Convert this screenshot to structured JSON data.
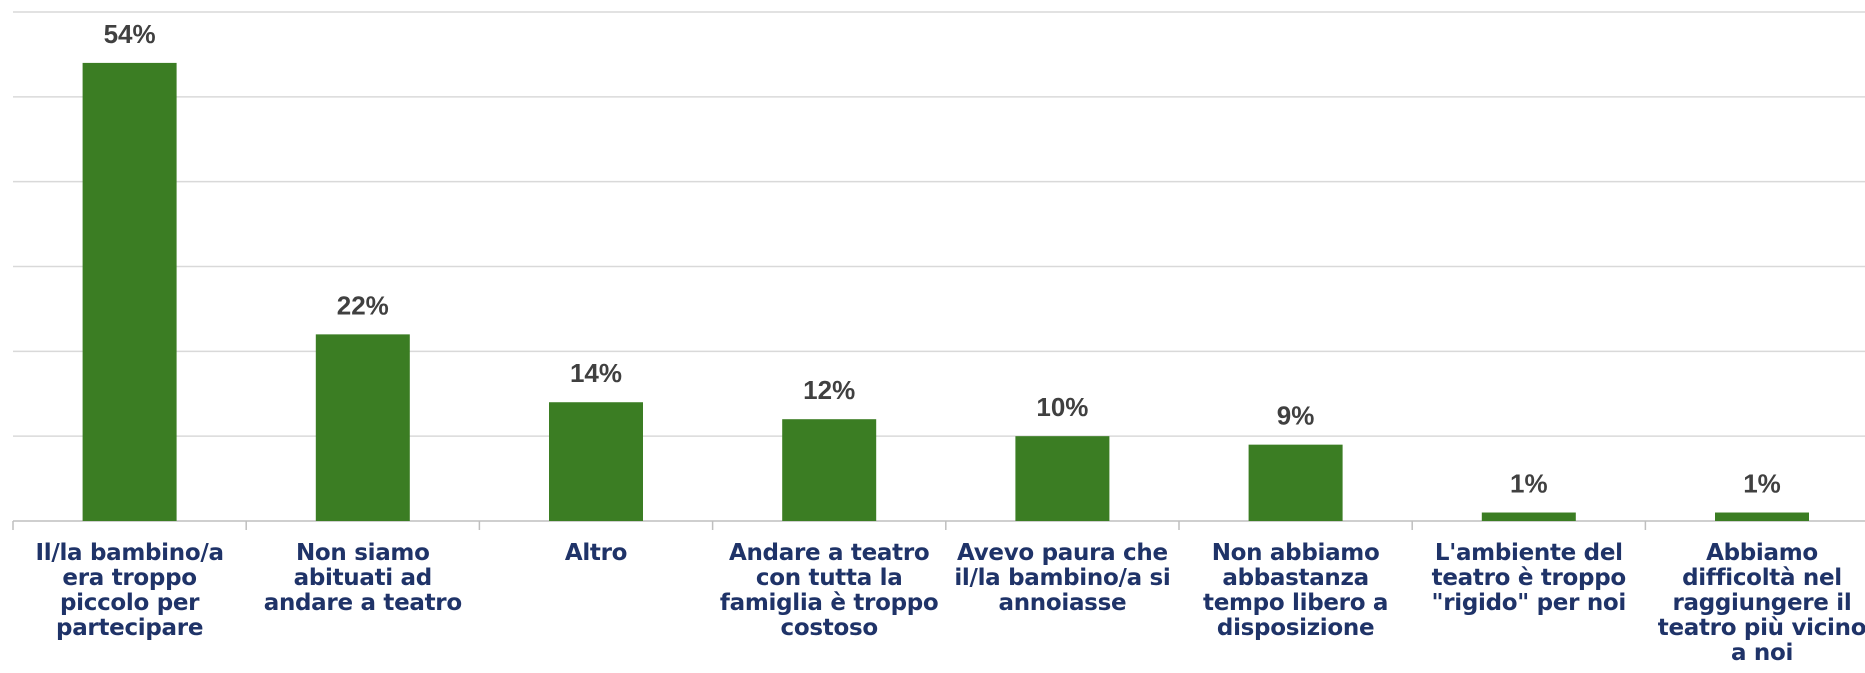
{
  "chart_data": {
    "type": "bar",
    "categories": [
      "Il/la bambino/a era troppo piccolo per partecipare",
      "Non siamo abituati ad andare a teatro",
      "Altro",
      "Andare a teatro con tutta la famiglia è troppo costoso",
      "Avevo paura che il/la bambino/a si annoiasse",
      "Non abbiamo abbastanza tempo libero a disposizione",
      "L'ambiente del teatro è troppo \"rigido\" per noi",
      "Abbiamo difficoltà nel raggiungere il teatro più vicino a noi"
    ],
    "values": [
      54,
      22,
      14,
      12,
      10,
      9,
      1,
      1
    ],
    "value_labels": [
      "54%",
      "22%",
      "14%",
      "12%",
      "10%",
      "9%",
      "1%",
      "1%"
    ],
    "color": "#3b7d23",
    "ylim": [
      0,
      60
    ],
    "yticks": [
      0,
      10,
      20,
      30,
      40,
      50,
      60
    ],
    "grid": true
  }
}
